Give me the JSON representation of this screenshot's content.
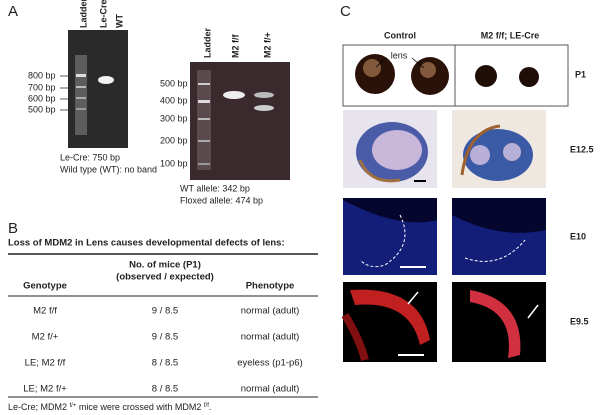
{
  "panel_a": {
    "label": "A",
    "gel_1": {
      "lanes": [
        "Ladder",
        "Le-Cre",
        "WT"
      ],
      "markers": [
        "800 bp",
        "700 bp",
        "600 bp",
        "500 bp"
      ],
      "captions": [
        "Le-Cre: 750 bp",
        "Wild type (WT): no band"
      ]
    },
    "gel_2": {
      "lanes": [
        "Ladder",
        "M2 f/f",
        "M2 f/+"
      ],
      "markers": [
        "500 bp",
        "400 bp",
        "300 bp",
        "200 bp",
        "100 bp"
      ],
      "captions": [
        "WT allele: 342 bp",
        "Floxed allele: 474 bp"
      ]
    }
  },
  "panel_b": {
    "label": "B",
    "title": "Loss of MDM2 in Lens causes developmental defects of lens:",
    "headers": {
      "genotype": "Genotype",
      "mice": "No. of mice (P1)",
      "mice_sub": "(observed / expected)",
      "phenotype": "Phenotype"
    },
    "rows": [
      [
        "M2 f/f",
        "9 / 8.5",
        "normal (adult)"
      ],
      [
        "M2 f/+",
        "9 / 8.5",
        "normal (adult)"
      ],
      [
        "LE; M2 f/f",
        "8 / 8.5",
        "eyeless (p1-p6)"
      ],
      [
        "LE; M2 f/+",
        "8 / 8.5",
        "normal (adult)"
      ]
    ],
    "footnote": [
      "Le-Cre; MDM2 ",
      "f/+",
      " mice were crossed with MDM2 ",
      "f/f",
      "."
    ]
  },
  "panel_c": {
    "label": "C",
    "columns": [
      "Control",
      "M2 f/f; LE-Cre"
    ],
    "lens_label": "lens",
    "rows": [
      "P1",
      "E12.5",
      "E10",
      "E9.5"
    ]
  }
}
